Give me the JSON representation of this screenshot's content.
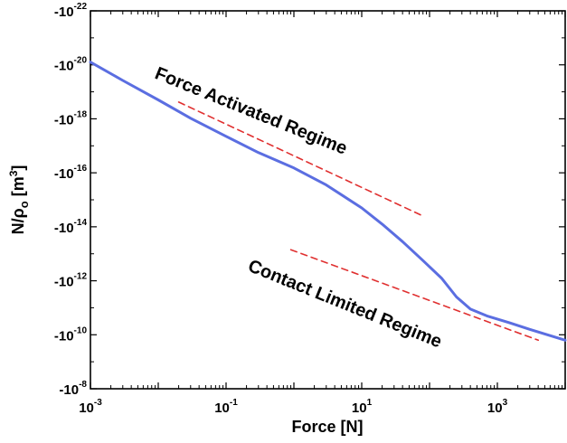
{
  "chart_data": {
    "type": "line",
    "title": "",
    "xlabel": "Force [N]",
    "ylabel_parts": {
      "base": "N/ρ",
      "sub": "o",
      "unit_open": " [m",
      "unit_sup": "3",
      "unit_close": "]"
    },
    "x_scale": "log",
    "y_scale": "log",
    "xlim": [
      0.001,
      10000
    ],
    "ylim_exponents": [
      -8,
      -22
    ],
    "x_ticks": [
      {
        "base": "10",
        "exp": "-3",
        "value": 0.001
      },
      {
        "base": "10",
        "exp": "-1",
        "value": 0.1
      },
      {
        "base": "10",
        "exp": "1",
        "value": 10
      },
      {
        "base": "10",
        "exp": "3",
        "value": 1000
      }
    ],
    "y_ticks": [
      {
        "base": "-10",
        "exp": "-22",
        "value": -22
      },
      {
        "base": "-10",
        "exp": "-20",
        "value": -20
      },
      {
        "base": "-10",
        "exp": "-18",
        "value": -18
      },
      {
        "base": "-10",
        "exp": "-16",
        "value": -16
      },
      {
        "base": "-10",
        "exp": "-14",
        "value": -14
      },
      {
        "base": "-10",
        "exp": "-12",
        "value": -12
      },
      {
        "base": "-10",
        "exp": "-10",
        "value": -10
      },
      {
        "base": "-10",
        "exp": "-8",
        "value": -8
      }
    ],
    "grid": false,
    "legend": "none",
    "series": [
      {
        "style": "solid",
        "color": "#5b6ee1",
        "x": [
          0.001,
          0.003,
          0.01,
          0.03,
          0.1,
          0.3,
          1,
          3,
          10,
          20,
          40,
          80,
          150,
          250,
          400,
          700,
          1500,
          3000,
          10000
        ],
        "y_exp": [
          -20.1,
          -19.42,
          -18.7,
          -18.02,
          -17.35,
          -16.75,
          -16.18,
          -15.55,
          -14.7,
          -14.1,
          -13.45,
          -12.75,
          -12.1,
          -11.4,
          -10.95,
          -10.7,
          -10.45,
          -10.2,
          -9.8
        ]
      },
      {
        "style": "dashed",
        "color": "#e03030",
        "x": [
          0.02,
          80
        ],
        "y_exp": [
          -18.62,
          -14.4
        ]
      },
      {
        "style": "dashed",
        "color": "#e03030",
        "x": [
          0.9,
          4000
        ],
        "y_exp": [
          -13.15,
          -9.8
        ]
      }
    ],
    "annotations": [
      {
        "text": "Force Activated Regime"
      },
      {
        "text": "Contact Limited Regime"
      }
    ]
  }
}
